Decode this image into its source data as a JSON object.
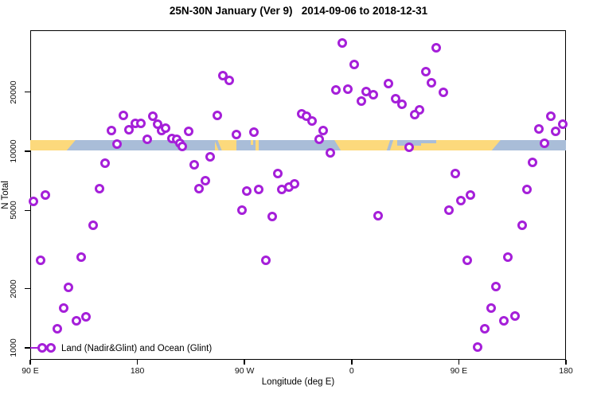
{
  "title": "25N-30N January (Ver 9)   2014-09-06 to 2018-12-31",
  "chart_data": {
    "type": "scatter",
    "title": "25N-30N January (Ver 9)   2014-09-06 to 2018-12-31",
    "xlabel": "Longitude (deg E)",
    "ylabel": "N Total",
    "x_axis": {
      "xlim": [
        90,
        540
      ],
      "ticks": [
        {
          "lon": 90,
          "label": "90 E"
        },
        {
          "lon": 180,
          "label": "180"
        },
        {
          "lon": 270,
          "label": "90 W"
        },
        {
          "lon": 360,
          "label": "0"
        },
        {
          "lon": 450,
          "label": "90 E"
        },
        {
          "lon": 540,
          "label": "180"
        }
      ]
    },
    "y_axis": {
      "scale": "log10",
      "ylim": [
        845,
        41250
      ],
      "ticks": [
        {
          "value": 1000,
          "label": "1000"
        },
        {
          "value": 2000,
          "label": "2000"
        },
        {
          "value": 5000,
          "label": "5000"
        },
        {
          "value": 10000,
          "label": "10000"
        },
        {
          "value": 20000,
          "label": "20000"
        }
      ]
    },
    "marker": {
      "shape": "open-circle",
      "color": "#A51FD9",
      "fill": "#ffffff"
    },
    "legend": {
      "label": "Land (Nadir&Glint) and Ocean (Glint)"
    },
    "land_ocean_band": {
      "description": "land(orange)/ocean(blue) strip at N~10500",
      "value": 10500,
      "land_color": "#FCD97C",
      "ocean_color": "#A9BDD8",
      "land_segments": [
        {
          "lon": [
            90,
            128
          ],
          "clip": "asia-east"
        },
        {
          "lon": [
            245,
            263.5
          ],
          "clip": "none"
        },
        {
          "lon": [
            275.2,
            277.5
          ],
          "clip": "top-speck"
        },
        {
          "lon": [
            279.2,
            281.7
          ],
          "clip": "none"
        },
        {
          "lon": [
            345.5,
            485
          ],
          "clip": "africa-asia"
        }
      ],
      "ocean_patches": [
        {
          "lon": [
            246.5,
            249.4
          ],
          "type": "skew-full",
          "skew": 22
        },
        {
          "lon": [
            391,
            393.8
          ],
          "type": "skew-full",
          "skew": -18
        },
        {
          "lon": [
            398.5,
            418.5
          ],
          "type": "top",
          "h": 7
        },
        {
          "lon": [
            408.5,
            431
          ],
          "type": "bottom",
          "h": 4
        }
      ]
    },
    "points": [
      [
        168,
        15200
      ],
      [
        158,
        12700
      ],
      [
        173,
        12900
      ],
      [
        178,
        13900
      ],
      [
        183,
        13900
      ],
      [
        193,
        15100
      ],
      [
        197,
        13700
      ],
      [
        200,
        12700
      ],
      [
        204,
        13100
      ],
      [
        163,
        10900
      ],
      [
        188,
        11500
      ],
      [
        209,
        11600
      ],
      [
        213,
        11500
      ],
      [
        216,
        11000
      ],
      [
        218,
        10600
      ],
      [
        223,
        12600
      ],
      [
        228,
        8530
      ],
      [
        247,
        15200
      ],
      [
        241,
        9370
      ],
      [
        237,
        7080
      ],
      [
        232,
        6450
      ],
      [
        153,
        8690
      ],
      [
        148,
        6450
      ],
      [
        93,
        5560
      ],
      [
        103,
        5980
      ],
      [
        143,
        4200
      ],
      [
        99,
        2790
      ],
      [
        133,
        2900
      ],
      [
        122,
        2030
      ],
      [
        118,
        1590
      ],
      [
        129,
        1370
      ],
      [
        137,
        1440
      ],
      [
        113,
        1250
      ],
      [
        352,
        35500
      ],
      [
        362,
        27600
      ],
      [
        252,
        24300
      ],
      [
        257,
        22900
      ],
      [
        347,
        20500
      ],
      [
        357,
        20700
      ],
      [
        372,
        20100
      ],
      [
        368,
        18000
      ],
      [
        378,
        19400
      ],
      [
        391,
        22100
      ],
      [
        397,
        18500
      ],
      [
        402,
        17300
      ],
      [
        318,
        15500
      ],
      [
        322,
        15100
      ],
      [
        327,
        14300
      ],
      [
        263,
        12200
      ],
      [
        278,
        12500
      ],
      [
        336,
        12700
      ],
      [
        333,
        11500
      ],
      [
        342,
        9820
      ],
      [
        298,
        7700
      ],
      [
        301,
        6390
      ],
      [
        307,
        6570
      ],
      [
        312,
        6820
      ],
      [
        272,
        6280
      ],
      [
        282,
        6390
      ],
      [
        268,
        5010
      ],
      [
        293,
        4660
      ],
      [
        382,
        4700
      ],
      [
        288,
        2790
      ],
      [
        431,
        33600
      ],
      [
        422,
        25400
      ],
      [
        427,
        22300
      ],
      [
        437,
        20000
      ],
      [
        417,
        16200
      ],
      [
        413,
        15400
      ],
      [
        408,
        10500
      ],
      [
        447,
        7700
      ],
      [
        460,
        5980
      ],
      [
        452,
        5610
      ],
      [
        442,
        5010
      ],
      [
        512,
        8770
      ],
      [
        507,
        6390
      ],
      [
        527,
        15100
      ],
      [
        537,
        13700
      ],
      [
        517,
        13000
      ],
      [
        531,
        12600
      ],
      [
        522,
        11000
      ],
      [
        503,
        4200
      ],
      [
        457,
        2790
      ],
      [
        491,
        2900
      ],
      [
        481,
        2050
      ],
      [
        477,
        1590
      ],
      [
        497,
        1450
      ],
      [
        488,
        1370
      ],
      [
        472,
        1250
      ],
      [
        466,
        1010
      ]
    ]
  }
}
